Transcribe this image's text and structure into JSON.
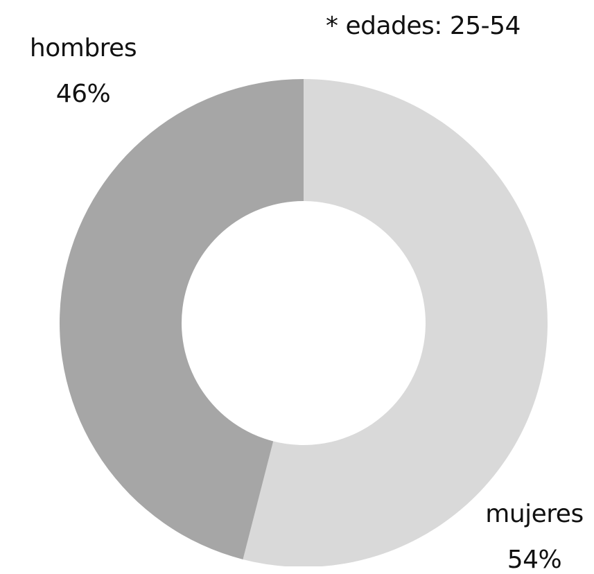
{
  "chart_data": {
    "type": "pie",
    "subtype": "donut",
    "note": "* edades: 25-54",
    "slices": [
      {
        "label": "mujeres",
        "value": 54,
        "value_label": "54%",
        "color": "#d9d9d9"
      },
      {
        "label": "hombres",
        "value": 46,
        "value_label": "46%",
        "color": "#a6a6a6"
      }
    ],
    "start_at": "top",
    "direction": "clockwise"
  }
}
